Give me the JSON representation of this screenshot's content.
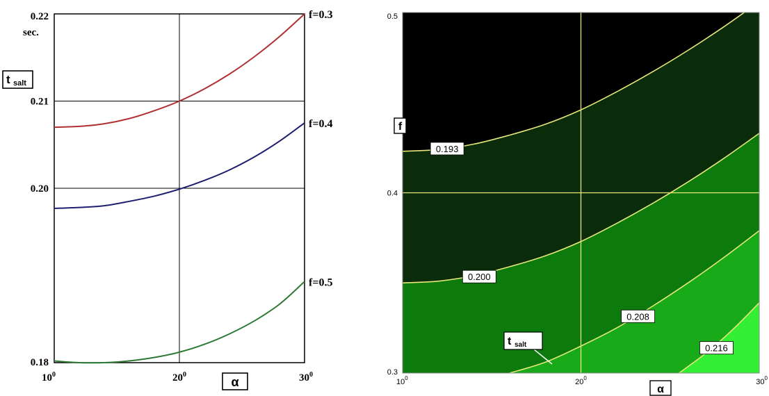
{
  "chart_data": [
    {
      "type": "line",
      "xlabel": "α",
      "ylabel_main": "t",
      "ylabel_sub": "salt",
      "y_unit": "sec.",
      "xlim": [
        10,
        30
      ],
      "ylim": [
        0.18,
        0.22
      ],
      "x_ticks": [
        {
          "value": 10,
          "label": "10",
          "sup": "0"
        },
        {
          "value": 20,
          "label": "20",
          "sup": "0"
        },
        {
          "value": 30,
          "label": "30",
          "sup": "0"
        }
      ],
      "y_ticks": [
        {
          "value": 0.18,
          "label": "0.18"
        },
        {
          "value": 0.2,
          "label": "0.20"
        },
        {
          "value": 0.21,
          "label": "0.21"
        },
        {
          "value": 0.22,
          "label": "0.22"
        }
      ],
      "series": [
        {
          "name": "f=0.3",
          "color": "#b03030",
          "x": [
            10,
            12,
            14,
            16,
            18,
            20,
            22,
            24,
            26,
            28,
            30
          ],
          "y": [
            0.207,
            0.2071,
            0.2074,
            0.208,
            0.2089,
            0.21,
            0.2114,
            0.2131,
            0.2151,
            0.2174,
            0.22
          ]
        },
        {
          "name": "f=0.4",
          "color": "#1e1e6e",
          "x": [
            10,
            12,
            14,
            16,
            18,
            20,
            22,
            24,
            26,
            28,
            30
          ],
          "y": [
            0.1977,
            0.1978,
            0.198,
            0.1985,
            0.1991,
            0.1999,
            0.2009,
            0.2021,
            0.2036,
            0.2054,
            0.2075
          ]
        },
        {
          "name": "f=0.5",
          "color": "#2e7a34",
          "x": [
            10,
            12,
            14,
            16,
            18,
            20,
            22,
            24,
            26,
            28,
            30
          ],
          "y": [
            0.1802,
            0.18,
            0.18,
            0.1802,
            0.1806,
            0.1812,
            0.1821,
            0.1833,
            0.1848,
            0.1867,
            0.1893
          ]
        }
      ]
    },
    {
      "type": "heatmap",
      "xlabel": "α",
      "ylabel": "f",
      "xlim": [
        10,
        30
      ],
      "ylim": [
        0.3,
        0.5
      ],
      "x_ticks": [
        {
          "value": 10,
          "label": "10",
          "sup": "0"
        },
        {
          "value": 20,
          "label": "20",
          "sup": "0"
        },
        {
          "value": 30,
          "label": "30",
          "sup": "0"
        }
      ],
      "y_ticks": [
        {
          "value": 0.3,
          "label": "0.3"
        },
        {
          "value": 0.4,
          "label": "0.4"
        },
        {
          "value": 0.5,
          "label": "0.5"
        }
      ],
      "colors": [
        "#000000",
        "#0b2c0b",
        "#0d7a0d",
        "#18aa18",
        "#34ee34"
      ],
      "contour_color": "#e8e87a",
      "t_label_main": "t",
      "t_label_sub": "salt",
      "contours": [
        {
          "value": "0.193",
          "x": [
            10,
            12,
            14,
            16,
            18,
            20,
            22,
            24,
            26,
            28,
            30
          ],
          "y": [
            0.423,
            0.424,
            0.427,
            0.432,
            0.438,
            0.446,
            0.456,
            0.467,
            0.479,
            0.492,
            0.506
          ]
        },
        {
          "value": "0.200",
          "x": [
            10,
            12,
            14,
            16,
            18,
            20,
            22,
            24,
            26,
            28,
            30
          ],
          "y": [
            0.35,
            0.351,
            0.354,
            0.359,
            0.365,
            0.373,
            0.383,
            0.394,
            0.406,
            0.419,
            0.433
          ]
        },
        {
          "value": "0.208",
          "x": [
            16,
            18,
            20,
            22,
            24,
            26,
            28,
            30
          ],
          "y": [
            0.3,
            0.306,
            0.315,
            0.325,
            0.337,
            0.35,
            0.364,
            0.379
          ]
        },
        {
          "value": "0.216",
          "x": [
            25.5,
            27,
            28.5,
            30
          ],
          "y": [
            0.3,
            0.311,
            0.324,
            0.339
          ]
        }
      ]
    }
  ]
}
